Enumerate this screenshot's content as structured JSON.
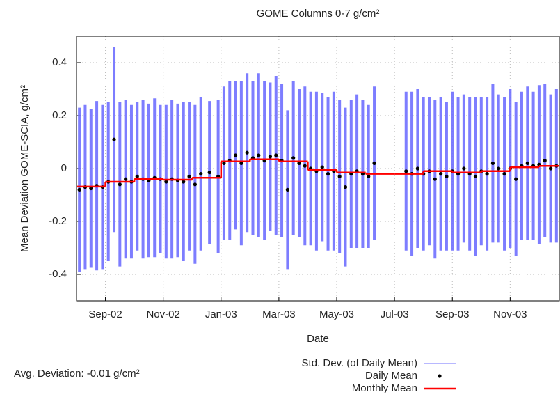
{
  "chart_data": {
    "type": "scatter",
    "title": "GOME Columns 0-7 g/cm²",
    "xlabel": "Date",
    "ylabel": "Mean Deviation GOME-SCIA, g/cm²",
    "annotation": "Avg. Deviation: -0.01 g/cm²",
    "xlim": [
      0,
      16.7
    ],
    "xticks": [
      {
        "value": 1,
        "label": "Sep-02"
      },
      {
        "value": 3,
        "label": "Nov-02"
      },
      {
        "value": 5,
        "label": "Jan-03"
      },
      {
        "value": 7,
        "label": "Mar-03"
      },
      {
        "value": 9,
        "label": "May-03"
      },
      {
        "value": 11,
        "label": "Jul-03"
      },
      {
        "value": 13,
        "label": "Sep-03"
      },
      {
        "value": 15,
        "label": "Nov-03"
      }
    ],
    "ylim": [
      -0.5,
      0.5
    ],
    "yticks": [
      -0.4,
      -0.2,
      0,
      0.2,
      0.4
    ],
    "grid": true,
    "x": [
      0.1,
      0.3,
      0.5,
      0.7,
      0.9,
      1.1,
      1.3,
      1.5,
      1.7,
      1.9,
      2.1,
      2.3,
      2.5,
      2.7,
      2.9,
      3.1,
      3.3,
      3.5,
      3.7,
      3.9,
      4.1,
      4.3,
      4.6,
      4.9,
      5.1,
      5.3,
      5.5,
      5.7,
      5.9,
      6.1,
      6.3,
      6.5,
      6.7,
      6.9,
      7.1,
      7.3,
      7.5,
      7.7,
      7.9,
      8.1,
      8.3,
      8.5,
      8.7,
      8.9,
      9.1,
      9.3,
      9.5,
      9.7,
      9.9,
      10.1,
      10.3,
      11.4,
      11.6,
      11.8,
      12.0,
      12.2,
      12.4,
      12.6,
      12.8,
      13.0,
      13.2,
      13.4,
      13.6,
      13.8,
      14.0,
      14.2,
      14.4,
      14.6,
      14.8,
      15.0,
      15.2,
      15.4,
      15.6,
      15.8,
      16.0,
      16.2,
      16.4,
      16.6
    ],
    "series": [
      {
        "name": "Std. Dev. (of Daily Mean)",
        "type": "errorbar",
        "color": "#7070ff",
        "values": [
          0.31,
          0.31,
          0.3,
          0.32,
          0.31,
          0.3,
          0.35,
          0.31,
          0.3,
          0.29,
          0.28,
          0.3,
          0.29,
          0.3,
          0.28,
          0.29,
          0.3,
          0.29,
          0.3,
          0.28,
          0.3,
          0.29,
          0.27,
          0.29,
          0.29,
          0.3,
          0.28,
          0.31,
          0.3,
          0.29,
          0.31,
          0.3,
          0.28,
          0.3,
          0.29,
          0.3,
          0.29,
          0.28,
          0.3,
          0.29,
          0.3,
          0.28,
          0.29,
          0.3,
          0.29,
          0.3,
          0.28,
          0.29,
          0.28,
          0.27,
          0.29,
          0.3,
          0.31,
          0.3,
          0.29,
          0.28,
          0.3,
          0.29,
          0.28,
          0.3,
          0.29,
          0.28,
          0.29,
          0.3,
          0.28,
          0.29,
          0.3,
          0.28,
          0.29,
          0.3,
          0.29,
          0.28,
          0.29,
          0.28,
          0.3,
          0.29,
          0.28,
          0.29
        ]
      },
      {
        "name": "Daily Mean",
        "type": "scatter",
        "color": "#000000",
        "values": [
          -0.08,
          -0.07,
          -0.075,
          -0.065,
          -0.07,
          -0.05,
          0.11,
          -0.06,
          -0.04,
          -0.05,
          -0.03,
          -0.04,
          -0.045,
          -0.035,
          -0.04,
          -0.05,
          -0.04,
          -0.045,
          -0.05,
          -0.03,
          -0.06,
          -0.02,
          -0.015,
          -0.03,
          0.02,
          0.03,
          0.05,
          0.02,
          0.06,
          0.04,
          0.05,
          0.03,
          0.045,
          0.05,
          0.03,
          -0.08,
          0.04,
          0.02,
          0.01,
          0.0,
          -0.01,
          0.005,
          -0.02,
          -0.01,
          -0.03,
          -0.07,
          -0.02,
          -0.01,
          -0.02,
          -0.03,
          0.02,
          -0.01,
          -0.02,
          0.0,
          -0.02,
          -0.01,
          -0.04,
          -0.02,
          -0.03,
          -0.01,
          -0.02,
          0.0,
          -0.02,
          -0.03,
          -0.01,
          -0.02,
          0.02,
          0.0,
          -0.02,
          0.0,
          -0.04,
          0.01,
          0.02,
          0.01,
          0.015,
          0.03,
          0.0,
          0.01
        ]
      },
      {
        "name": "Monthly Mean",
        "type": "step",
        "color": "#ff0000",
        "x": [
          0,
          1,
          2,
          3,
          4,
          5,
          6,
          7,
          8,
          9,
          10,
          11,
          12,
          13,
          14,
          15,
          16
        ],
        "values": [
          -0.068,
          -0.05,
          -0.04,
          -0.042,
          -0.035,
          0.027,
          0.035,
          0.027,
          -0.005,
          -0.015,
          -0.02,
          -0.02,
          -0.01,
          -0.015,
          -0.01,
          0.005,
          0.01
        ]
      }
    ]
  }
}
